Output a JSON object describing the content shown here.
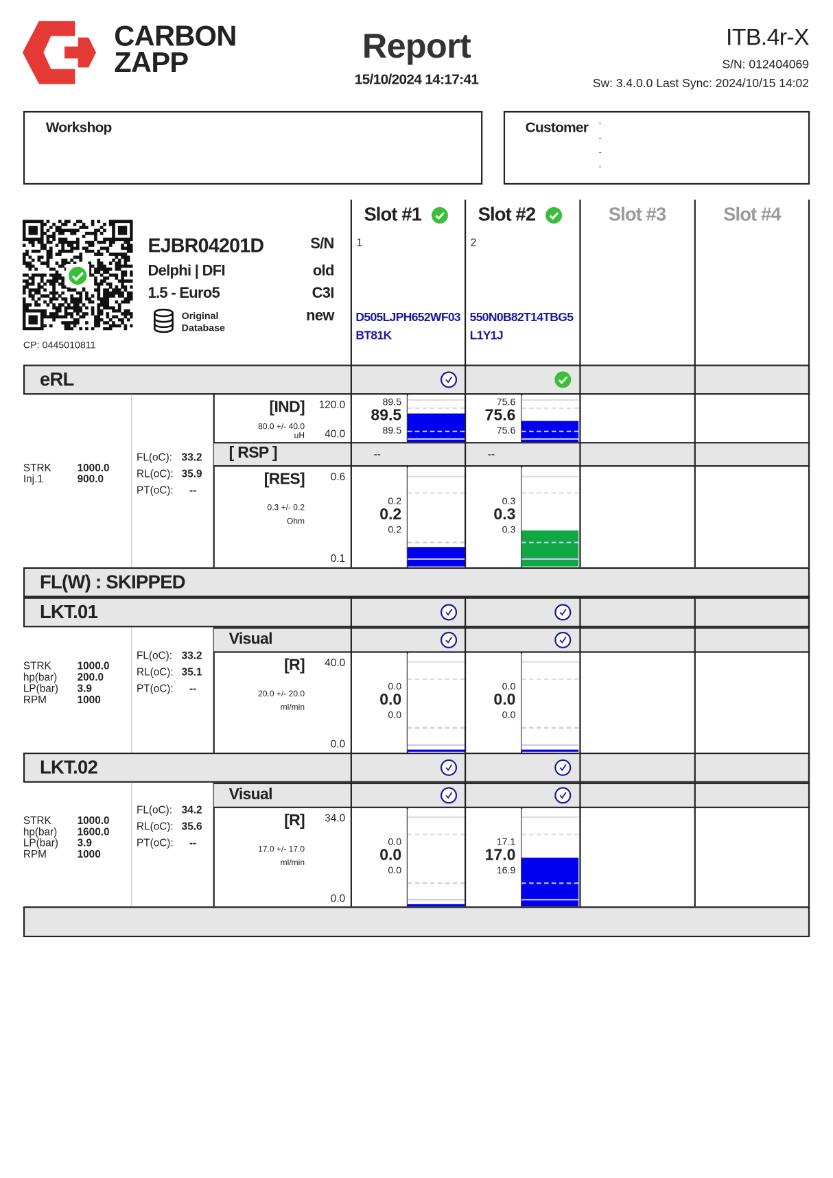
{
  "header": {
    "brand_line1": "CARBON",
    "brand_line2": "ZAPP",
    "title": "Report",
    "datetime": "15/10/2024 14:17:41",
    "device": "ITB.4r-X",
    "serial": "S/N: 012404069",
    "software": "Sw: 3.4.0.0 Last Sync: 2024/10/15 14:02",
    "brand_color": "#e53935"
  },
  "workshop": {
    "label": "Workshop"
  },
  "customer": {
    "label": "Customer",
    "lines": [
      "-",
      "-",
      "-",
      "-"
    ]
  },
  "injector": {
    "code": "EJBR04201D",
    "make": "Delphi | DFI",
    "spec": "1.5 - Euro5",
    "database_line1": "Original",
    "database_line2": "Database",
    "sn_labels": [
      "S/N",
      "old",
      "C3I",
      "new"
    ],
    "cp": "CP: 0445010811",
    "qr_verified": true
  },
  "slots": [
    {
      "label": "Slot #1",
      "active": true,
      "status": "ok",
      "number": "1",
      "code_line1": "D505LJPH652WF03",
      "code_line2": "BT81K"
    },
    {
      "label": "Slot #2",
      "active": true,
      "status": "ok",
      "number": "2",
      "code_line1": "550N0B82T14TBG5",
      "code_line2": "L1Y1J"
    },
    {
      "label": "Slot #3",
      "active": false,
      "status": "",
      "number": "",
      "code_line1": "",
      "code_line2": ""
    },
    {
      "label": "Slot #4",
      "active": false,
      "status": "",
      "number": "",
      "code_line1": "",
      "code_line2": ""
    }
  ],
  "colors": {
    "fill_blue": "#0000ee",
    "fill_green": "#10a844",
    "check_green": "#3bbf3b",
    "check_blue": "#1a1a9a",
    "code_blue": "#1a1a9a",
    "inactive_gray": "#9a9a9a"
  },
  "tests": {
    "erl": {
      "title": "eRL",
      "slot_status": [
        "pending",
        "ok",
        "",
        ""
      ],
      "params": [
        [
          "STRK",
          "1000.0"
        ],
        [
          "Inj.1",
          "900.0"
        ]
      ],
      "temps": [
        [
          "FL(oC):",
          "33.2"
        ],
        [
          "RL(oC):",
          "35.9"
        ],
        [
          "PT(oC):",
          "--"
        ]
      ],
      "ind": {
        "label": "[IND]",
        "tolerance": "80.0 +/- 40.0",
        "unit": "uH",
        "max": "120.0",
        "min": "40.0",
        "slots": [
          {
            "top": "89.5",
            "main": "89.5",
            "bottom": "89.5",
            "fill": 0.62,
            "color": "blue"
          },
          {
            "top": "75.6",
            "main": "75.6",
            "bottom": "75.6",
            "fill": 0.45,
            "color": "blue"
          }
        ]
      },
      "rsp": {
        "label": "[ RSP ]",
        "slots": [
          "--",
          "--"
        ]
      },
      "res": {
        "label": "[RES]",
        "tolerance": "0.3 +/- 0.2",
        "unit": "Ohm",
        "max": "0.6",
        "min": "0.1",
        "slots": [
          {
            "top": "0.2",
            "main": "0.2",
            "bottom": "0.2",
            "fill": 0.2,
            "color": "blue"
          },
          {
            "top": "0.3",
            "main": "0.3",
            "bottom": "0.3",
            "fill": 0.36,
            "color": "green"
          }
        ]
      }
    },
    "flw": {
      "title": "FL(W) : SKIPPED"
    },
    "lkt01": {
      "title": "LKT.01",
      "slot_status": [
        "pending",
        "pending",
        "",
        ""
      ],
      "visual_label": "Visual",
      "visual_status": [
        "pending",
        "pending",
        "",
        ""
      ],
      "params": [
        [
          "STRK",
          "1000.0"
        ],
        [
          "hp(bar)",
          "200.0"
        ],
        [
          "LP(bar)",
          "3.9"
        ],
        [
          "RPM",
          "1000"
        ]
      ],
      "temps": [
        [
          "FL(oC):",
          "33.2"
        ],
        [
          "RL(oC):",
          "35.1"
        ],
        [
          "PT(oC):",
          "--"
        ]
      ],
      "r": {
        "label": "[R]",
        "tolerance": "20.0 +/- 20.0",
        "unit": "ml/min",
        "max": "40.0",
        "min": "0.0",
        "slots": [
          {
            "top": "0.0",
            "main": "0.0",
            "bottom": "0.0",
            "fill": 0.02,
            "color": "blue"
          },
          {
            "top": "0.0",
            "main": "0.0",
            "bottom": "0.0",
            "fill": 0.02,
            "color": "blue"
          }
        ]
      }
    },
    "lkt02": {
      "title": "LKT.02",
      "slot_status": [
        "pending",
        "pending",
        "",
        ""
      ],
      "visual_label": "Visual",
      "visual_status": [
        "pending",
        "pending",
        "",
        ""
      ],
      "params": [
        [
          "STRK",
          "1000.0"
        ],
        [
          "hp(bar)",
          "1600.0"
        ],
        [
          "LP(bar)",
          "3.9"
        ],
        [
          "RPM",
          "1000"
        ]
      ],
      "temps": [
        [
          "FL(oC):",
          "34.2"
        ],
        [
          "RL(oC):",
          "35.6"
        ],
        [
          "PT(oC):",
          "--"
        ]
      ],
      "r": {
        "label": "[R]",
        "tolerance": "17.0 +/- 17.0",
        "unit": "ml/min",
        "max": "34.0",
        "min": "0.0",
        "slots": [
          {
            "top": "0.0",
            "main": "0.0",
            "bottom": "0.0",
            "fill": 0.02,
            "color": "blue"
          },
          {
            "top": "17.1",
            "main": "17.0",
            "bottom": "16.9",
            "fill": 0.5,
            "color": "blue"
          }
        ]
      }
    }
  }
}
